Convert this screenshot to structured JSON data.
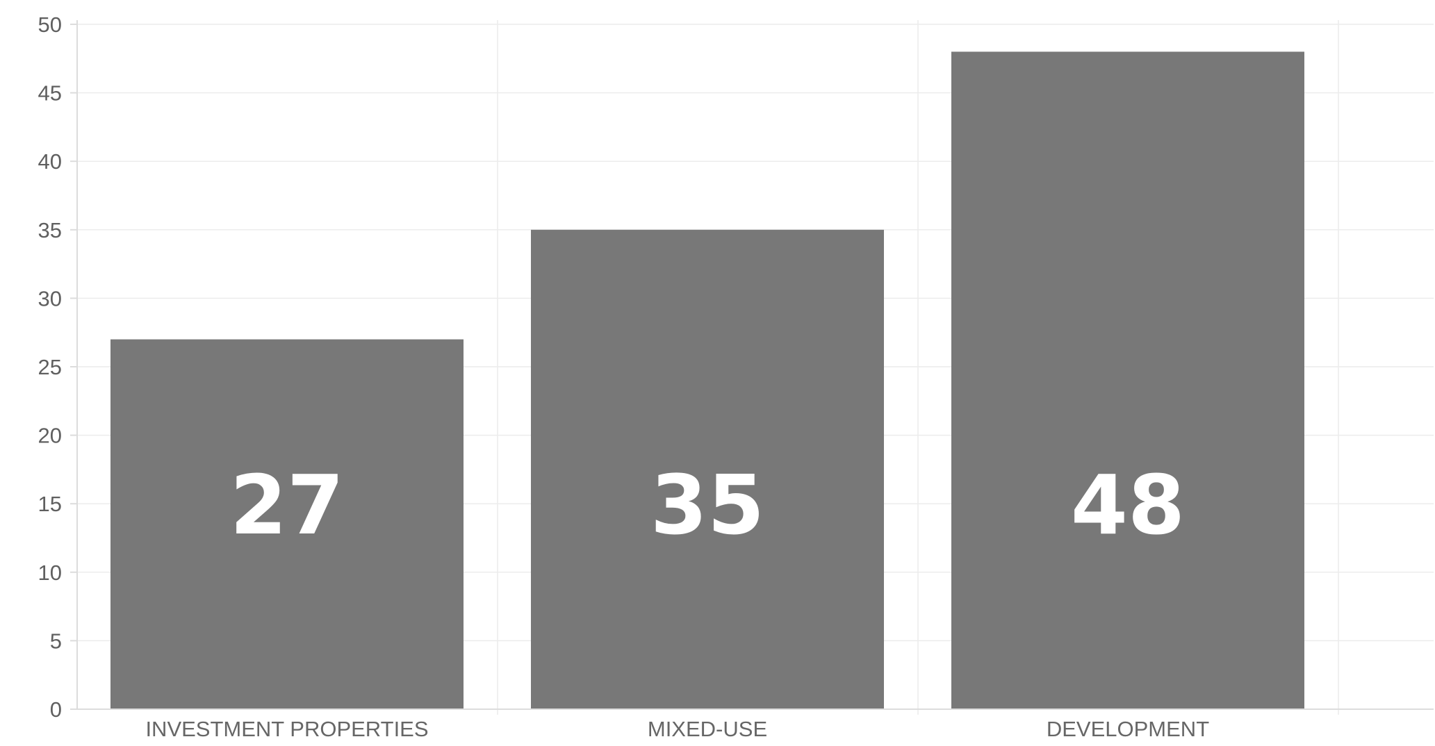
{
  "chart_data": {
    "type": "bar",
    "categories": [
      "INVESTMENT PROPERTIES",
      "MIXED-USE",
      "DEVELOPMENT"
    ],
    "values": [
      27,
      35,
      48
    ],
    "data_labels": [
      "27",
      "35",
      "48"
    ],
    "ylim": [
      0,
      50
    ],
    "y_ticks": [
      0,
      5,
      10,
      15,
      20,
      25,
      30,
      35,
      40,
      45,
      50
    ],
    "y_tick_labels": [
      "0",
      "5",
      "10",
      "15",
      "20",
      "25",
      "30",
      "35",
      "40",
      "45",
      "50"
    ],
    "grid": true,
    "legend": "none",
    "colors": {
      "bar": "#787878",
      "bar_label": "#ffffff",
      "grid": "#ececec",
      "axis": "#dcdcdc"
    }
  }
}
